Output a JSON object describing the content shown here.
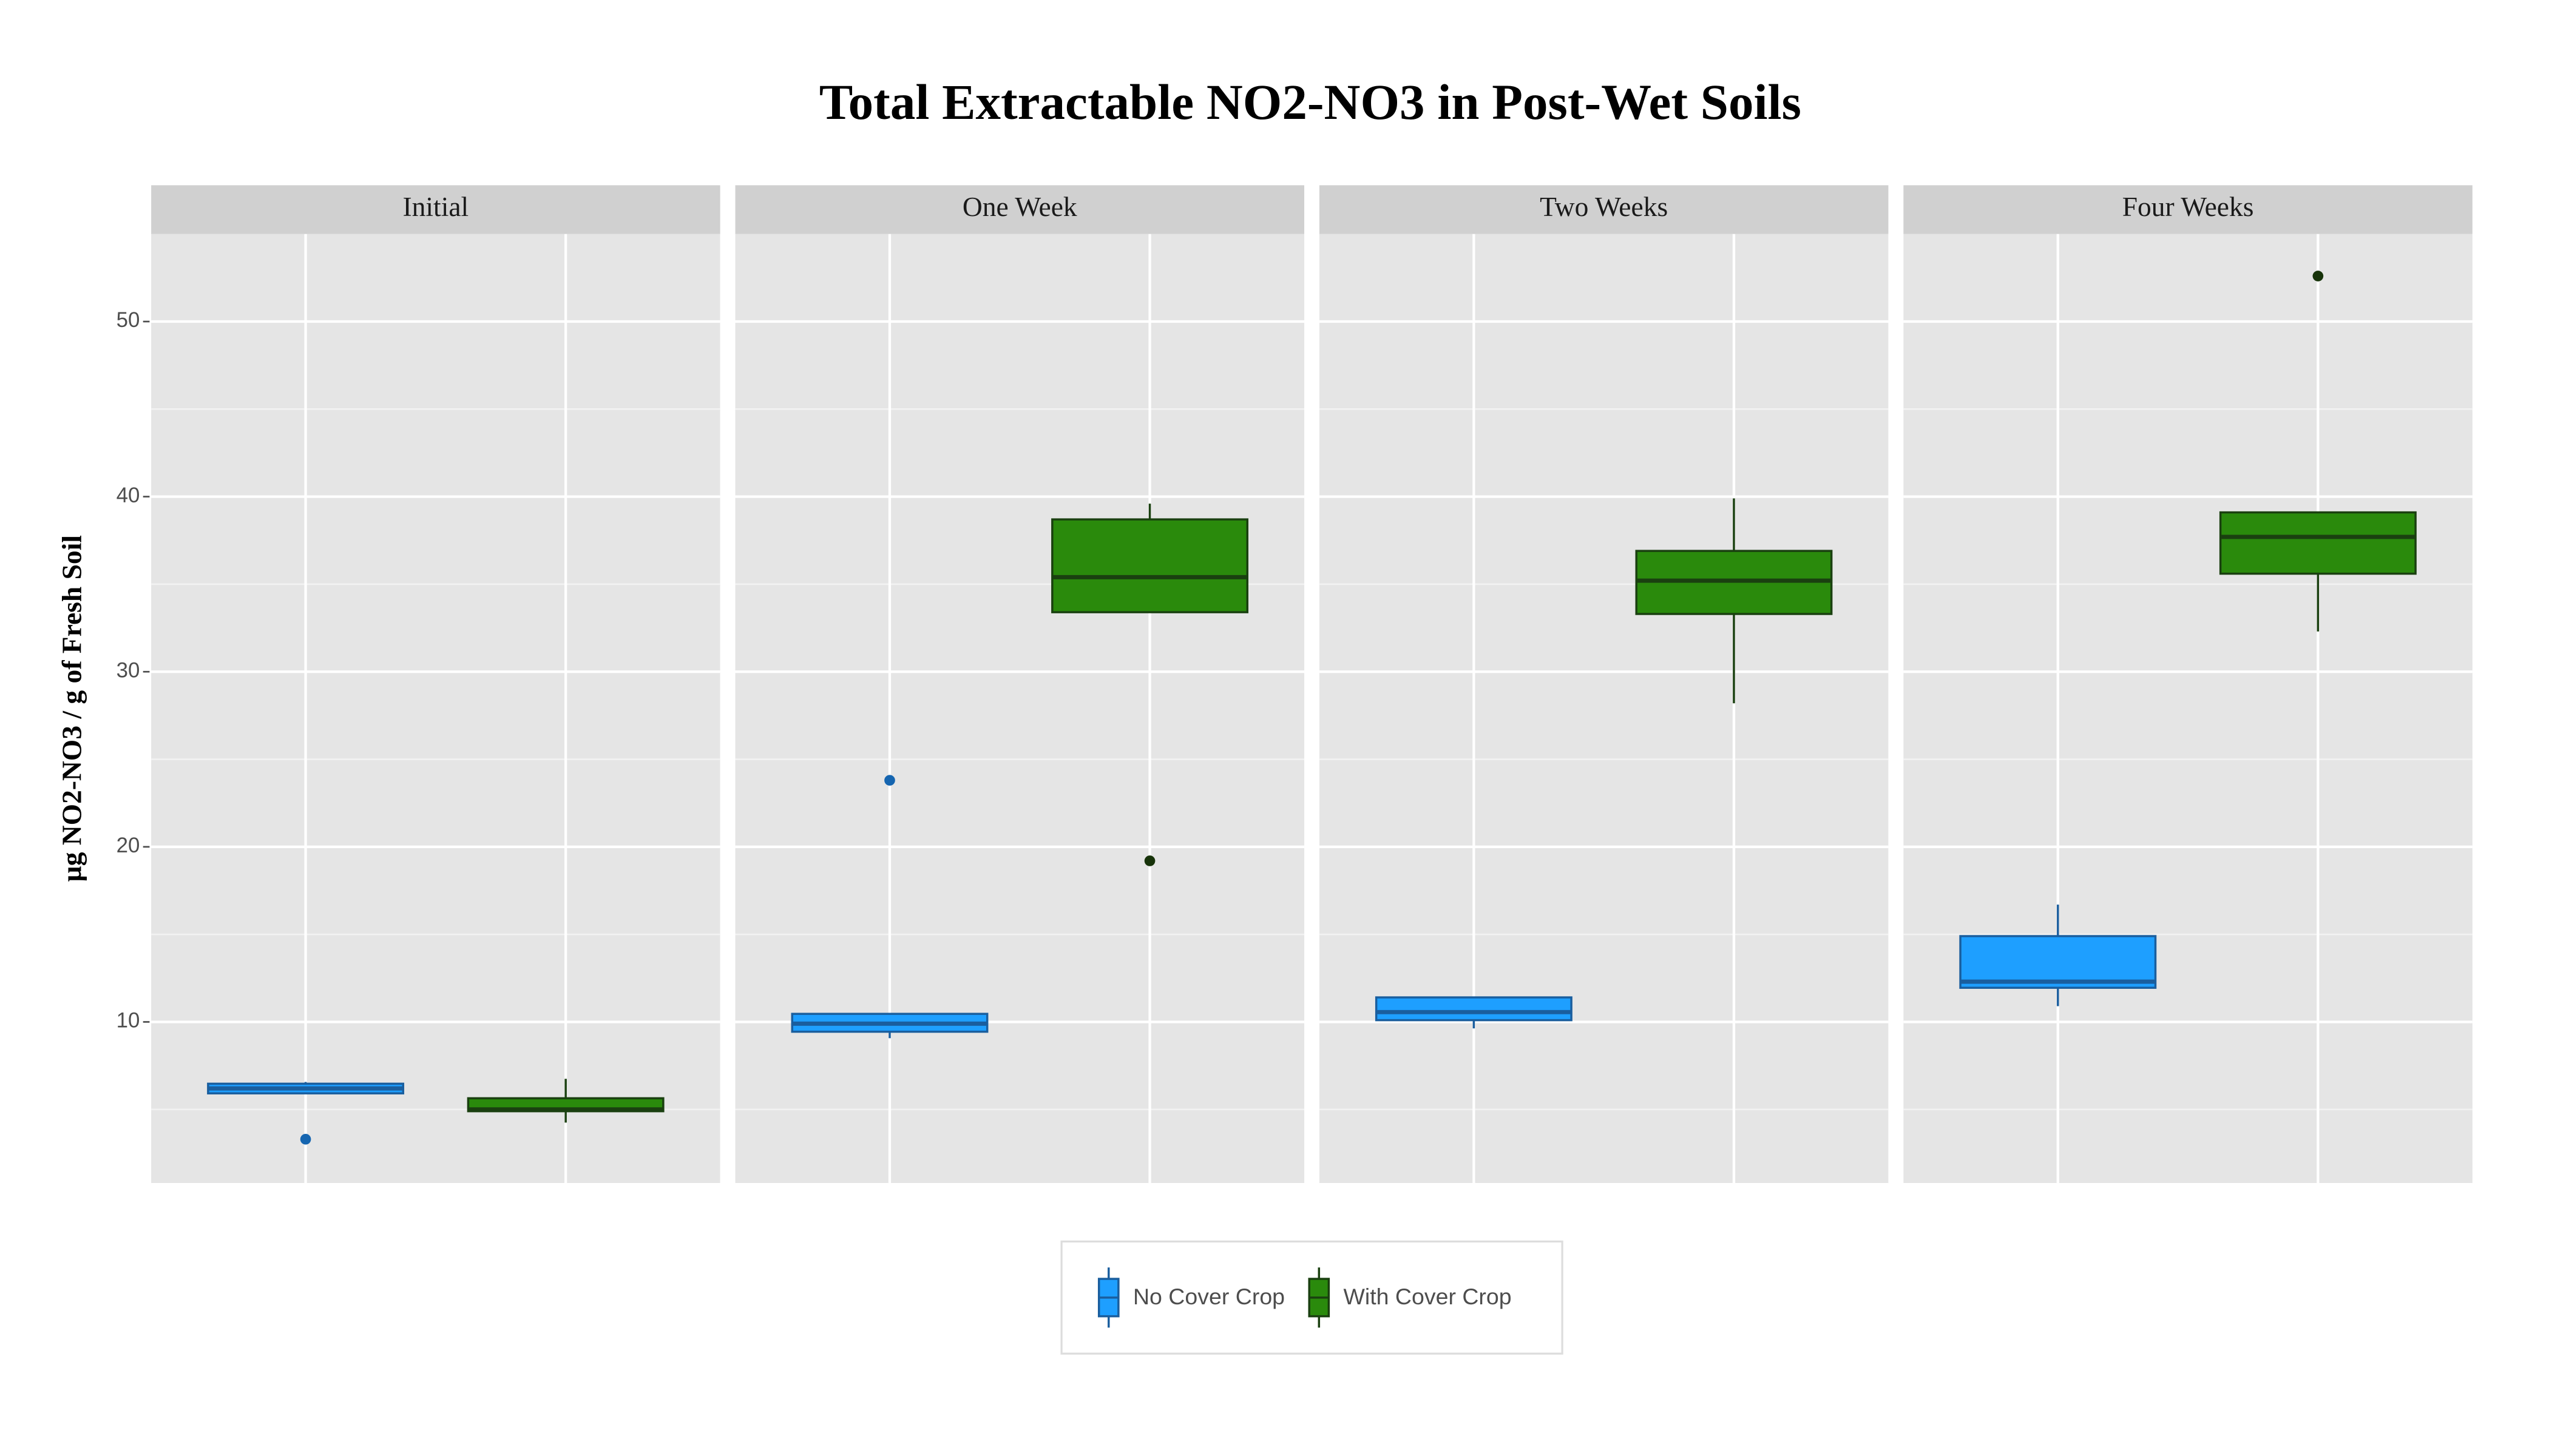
{
  "chart_data": {
    "type": "box",
    "title": "Total Extractable NO2-NO3 in Post-Wet Soils",
    "y_label": "µg NO2-NO3 / g of Fresh Soil",
    "facets": [
      "Initial",
      "One Week",
      "Two Weeks",
      "Four Weeks"
    ],
    "ylim": [
      0.8,
      55
    ],
    "yticks": [
      10,
      20,
      30,
      40,
      50
    ],
    "y_minor_ticks": [
      5,
      15,
      25,
      35,
      45
    ],
    "grid": true,
    "legend_position": "bottom",
    "series": [
      {
        "name": "No Cover Crop",
        "color": "#1e9fff",
        "edge_color": "#1a5e9e",
        "outlier_color": "#1565b0",
        "boxes": [
          {
            "min": 5.92,
            "q1": 5.92,
            "median": 6.2,
            "q3": 6.47,
            "max": 6.57,
            "outliers": [
              3.3
            ]
          },
          {
            "min": 9.07,
            "q1": 9.44,
            "median": 9.9,
            "q3": 10.46,
            "max": 10.46,
            "outliers": [
              23.8
            ]
          },
          {
            "min": 9.63,
            "q1": 10.1,
            "median": 10.56,
            "q3": 11.4,
            "max": 11.4,
            "outliers": []
          },
          {
            "min": 10.9,
            "q1": 11.95,
            "median": 12.3,
            "q3": 14.9,
            "max": 16.7,
            "outliers": []
          }
        ]
      },
      {
        "name": "With Cover Crop",
        "color": "#2a8a0c",
        "edge_color": "#1a4010",
        "outlier_color": "#17330a",
        "boxes": [
          {
            "min": 4.25,
            "q1": 4.9,
            "median": 5.0,
            "q3": 5.64,
            "max": 6.75,
            "outliers": []
          },
          {
            "min": 33.4,
            "q1": 33.4,
            "median": 35.4,
            "q3": 38.7,
            "max": 39.6,
            "outliers": [
              19.2
            ]
          },
          {
            "min": 28.2,
            "q1": 33.3,
            "median": 35.2,
            "q3": 36.9,
            "max": 39.9,
            "outliers": []
          },
          {
            "min": 32.3,
            "q1": 35.6,
            "median": 37.7,
            "q3": 39.1,
            "max": 39.1,
            "outliers": [
              52.6
            ]
          }
        ]
      }
    ]
  }
}
